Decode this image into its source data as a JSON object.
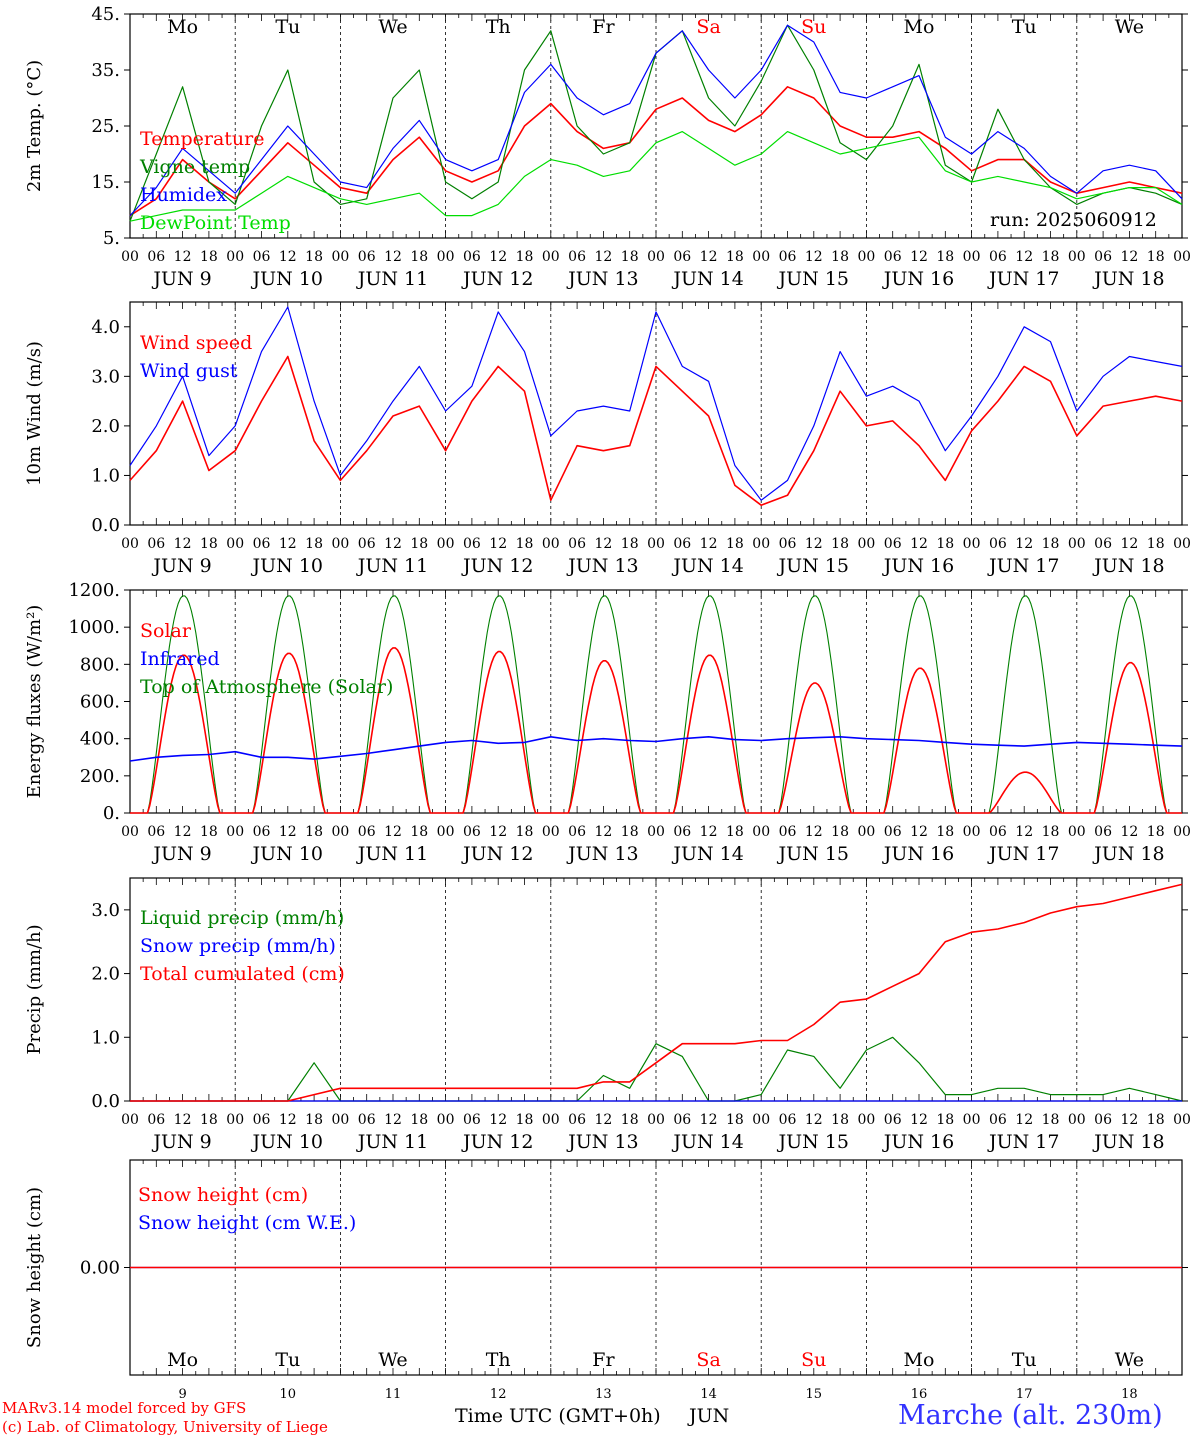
{
  "days": {
    "weekdays": [
      "Mo",
      "Tu",
      "We",
      "Th",
      "Fr",
      "Sa",
      "Su",
      "Mo",
      "Tu",
      "We"
    ],
    "dates": [
      "JUN  9",
      "JUN 10",
      "JUN 11",
      "JUN 12",
      "JUN 13",
      "JUN 14",
      "JUN 15",
      "JUN 16",
      "JUN 17",
      "JUN 18"
    ],
    "day_numbers": [
      "9",
      "10",
      "11",
      "12",
      "13",
      "14",
      "15",
      "16",
      "17",
      "18"
    ],
    "hour_ticks": [
      "00",
      "06",
      "12",
      "18"
    ],
    "weekend_color": "#ff0000",
    "weekday_color": "#000000"
  },
  "run_label": "run: 2025060912",
  "footer": {
    "model_line": "MARv3.14 model forced by GFS",
    "copyright_line": "(c) Lab. of Climatology, University of Liege",
    "xlabel": "Time UTC (GMT+0h)",
    "month": "JUN",
    "station": "Marche (alt. 230m)"
  },
  "chart_data": [
    {
      "id": "temp",
      "type": "line",
      "ylabel": "2m Temp. (°C)",
      "ylim": [
        5,
        45
      ],
      "yticks": [
        5,
        15,
        25,
        35,
        45
      ],
      "ytick_labels": [
        "5.",
        "15.",
        "25.",
        "35.",
        "45."
      ],
      "xlim": [
        0,
        240
      ],
      "x_unit": "hours since 2025-06-09 00 UTC",
      "x": [
        0,
        6,
        12,
        18,
        24,
        30,
        36,
        42,
        48,
        54,
        60,
        66,
        72,
        78,
        84,
        90,
        96,
        102,
        108,
        114,
        120,
        126,
        132,
        138,
        144,
        150,
        156,
        162,
        168,
        174,
        180,
        186,
        192,
        198,
        204,
        210,
        216,
        222,
        228,
        234,
        240
      ],
      "series": [
        {
          "name": "Temperature",
          "color": "#ff0000",
          "values": [
            9,
            12,
            19,
            15,
            12,
            17,
            22,
            18,
            14,
            13,
            19,
            23,
            17,
            15,
            17,
            25,
            29,
            24,
            21,
            22,
            28,
            30,
            26,
            24,
            27,
            32,
            30,
            25,
            23,
            23,
            24,
            21,
            17,
            19,
            19,
            15,
            13,
            14,
            15,
            14,
            13
          ]
        },
        {
          "name": "Vigne temp",
          "color": "#008000",
          "values": [
            8,
            20,
            32,
            15,
            11,
            25,
            35,
            15,
            11,
            12,
            30,
            35,
            15,
            12,
            15,
            35,
            42,
            25,
            20,
            22,
            38,
            42,
            30,
            25,
            33,
            43,
            35,
            22,
            19,
            25,
            36,
            18,
            15,
            28,
            19,
            14,
            11,
            13,
            14,
            13,
            11
          ]
        },
        {
          "name": "Humidex",
          "color": "#0000ff",
          "values": [
            9,
            14,
            21,
            17,
            13,
            19,
            25,
            20,
            15,
            14,
            21,
            26,
            19,
            17,
            19,
            31,
            36,
            30,
            27,
            29,
            38,
            42,
            35,
            30,
            35,
            43,
            40,
            31,
            30,
            32,
            34,
            23,
            20,
            24,
            21,
            16,
            13,
            17,
            18,
            17,
            12
          ]
        },
        {
          "name": "DewPoint Temp",
          "color": "#00dd00",
          "values": [
            8,
            9,
            10,
            10,
            10,
            13,
            16,
            14,
            12,
            11,
            12,
            13,
            9,
            9,
            11,
            16,
            19,
            18,
            16,
            17,
            22,
            24,
            21,
            18,
            20,
            24,
            22,
            20,
            21,
            22,
            23,
            17,
            15,
            16,
            15,
            14,
            12,
            13,
            14,
            14,
            11
          ]
        }
      ]
    },
    {
      "id": "wind",
      "type": "line",
      "ylabel": "10m Wind (m/s)",
      "ylim": [
        0,
        4.5
      ],
      "yticks": [
        0,
        1,
        2,
        3,
        4
      ],
      "ytick_labels": [
        "0.0",
        "1.0",
        "2.0",
        "3.0",
        "4.0"
      ],
      "xlim": [
        0,
        240
      ],
      "x": [
        0,
        6,
        12,
        18,
        24,
        30,
        36,
        42,
        48,
        54,
        60,
        66,
        72,
        78,
        84,
        90,
        96,
        102,
        108,
        114,
        120,
        126,
        132,
        138,
        144,
        150,
        156,
        162,
        168,
        174,
        180,
        186,
        192,
        198,
        204,
        210,
        216,
        222,
        228,
        234,
        240
      ],
      "series": [
        {
          "name": "Wind speed",
          "color": "#ff0000",
          "values": [
            0.9,
            1.5,
            2.5,
            1.1,
            1.5,
            2.5,
            3.4,
            1.7,
            0.9,
            1.5,
            2.2,
            2.4,
            1.5,
            2.5,
            3.2,
            2.7,
            0.5,
            1.6,
            1.5,
            1.6,
            3.2,
            2.7,
            2.2,
            0.8,
            0.4,
            0.6,
            1.5,
            2.7,
            2.0,
            2.1,
            1.6,
            0.9,
            1.9,
            2.5,
            3.2,
            2.9,
            1.8,
            2.4,
            2.5,
            2.6,
            2.5
          ]
        },
        {
          "name": "Wind gust",
          "color": "#0000ff",
          "values": [
            1.2,
            2.0,
            3.0,
            1.4,
            2.0,
            3.5,
            4.4,
            2.5,
            1.0,
            1.7,
            2.5,
            3.2,
            2.3,
            2.8,
            4.3,
            3.5,
            1.8,
            2.3,
            2.4,
            2.3,
            4.3,
            3.2,
            2.9,
            1.2,
            0.5,
            0.9,
            2.0,
            3.5,
            2.6,
            2.8,
            2.5,
            1.5,
            2.2,
            3.0,
            4.0,
            3.7,
            2.3,
            3.0,
            3.4,
            3.3,
            3.2
          ]
        }
      ]
    },
    {
      "id": "energy",
      "type": "line",
      "ylabel": "Energy fluxes (W/m²)",
      "ylim": [
        0,
        1200
      ],
      "yticks": [
        0,
        200,
        400,
        600,
        800,
        1000,
        1200
      ],
      "ytick_labels": [
        "0.",
        "200.",
        "400.",
        "600.",
        "800.",
        "1000.",
        "1200."
      ],
      "xlim": [
        0,
        240
      ],
      "x_unit": "hours since 2025-06-09 00 UTC",
      "daylight": {
        "sunrise_hour": 4,
        "sunset_hour": 20.5
      },
      "series": [
        {
          "name": "Solar",
          "color": "#ff0000",
          "daily_peak": [
            850,
            860,
            890,
            870,
            820,
            850,
            700,
            780,
            220,
            810
          ]
        },
        {
          "name": "Infrared",
          "color": "#0000ff",
          "values": [
            280,
            300,
            310,
            315,
            330,
            300,
            300,
            290,
            305,
            320,
            340,
            360,
            380,
            390,
            375,
            380,
            410,
            390,
            400,
            390,
            385,
            400,
            410,
            395,
            390,
            400,
            405,
            410,
            400,
            395,
            390,
            380,
            370,
            365,
            360,
            370,
            380,
            375,
            370,
            365,
            360
          ]
        },
        {
          "name": "Top of Atmosphere (Solar)",
          "color": "#008000",
          "daily_peak": [
            1170,
            1170,
            1170,
            1170,
            1170,
            1170,
            1170,
            1170,
            1170,
            1170
          ]
        }
      ]
    },
    {
      "id": "precip",
      "type": "line",
      "ylabel": "Precip (mm/h)",
      "ylim": [
        0,
        3.5
      ],
      "yticks": [
        0,
        1,
        2,
        3
      ],
      "ytick_labels": [
        "0.0",
        "1.0",
        "2.0",
        "3.0"
      ],
      "xlim": [
        0,
        240
      ],
      "x": [
        0,
        6,
        12,
        18,
        24,
        30,
        36,
        42,
        48,
        54,
        60,
        66,
        72,
        78,
        84,
        90,
        96,
        102,
        108,
        114,
        120,
        126,
        132,
        138,
        144,
        150,
        156,
        162,
        168,
        174,
        180,
        186,
        192,
        198,
        204,
        210,
        216,
        222,
        228,
        234,
        240
      ],
      "series": [
        {
          "name": "Liquid precip (mm/h)",
          "color": "#008000",
          "values": [
            0,
            0,
            0,
            0,
            0,
            0,
            0,
            0.6,
            0,
            0,
            0,
            0,
            0,
            0,
            0,
            0,
            0,
            0,
            0.4,
            0.2,
            0.9,
            0.7,
            0,
            0,
            0.1,
            0.8,
            0.7,
            0.2,
            0.8,
            1.0,
            0.6,
            0.1,
            0.1,
            0.2,
            0.2,
            0.1,
            0.1,
            0.1,
            0.2,
            0.1,
            0
          ]
        },
        {
          "name": "Snow precip (mm/h)",
          "color": "#0000ff",
          "values": [
            0,
            0,
            0,
            0,
            0,
            0,
            0,
            0,
            0,
            0,
            0,
            0,
            0,
            0,
            0,
            0,
            0,
            0,
            0,
            0,
            0,
            0,
            0,
            0,
            0,
            0,
            0,
            0,
            0,
            0,
            0,
            0,
            0,
            0,
            0,
            0,
            0,
            0,
            0,
            0,
            0
          ]
        },
        {
          "name": "Total cumulated (cm)",
          "color": "#ff0000",
          "values": [
            0,
            0,
            0,
            0,
            0,
            0,
            0,
            0.1,
            0.2,
            0.2,
            0.2,
            0.2,
            0.2,
            0.2,
            0.2,
            0.2,
            0.2,
            0.2,
            0.3,
            0.3,
            0.6,
            0.9,
            0.9,
            0.9,
            0.95,
            0.95,
            1.2,
            1.55,
            1.6,
            1.8,
            2.0,
            2.5,
            2.65,
            2.7,
            2.8,
            2.95,
            3.05,
            3.1,
            3.2,
            3.3,
            3.4
          ]
        }
      ]
    },
    {
      "id": "snow",
      "type": "line",
      "ylabel": "Snow height (cm)",
      "ylim": [
        -1,
        1
      ],
      "yticks": [
        0
      ],
      "ytick_labels": [
        "0.00"
      ],
      "xlim": [
        0,
        240
      ],
      "series": [
        {
          "name": "Snow height (cm)",
          "color": "#ff0000",
          "values": [
            0,
            0
          ]
        },
        {
          "name": "Snow height (cm W.E.)",
          "color": "#0000ff",
          "values": [
            0,
            0
          ]
        }
      ]
    }
  ]
}
